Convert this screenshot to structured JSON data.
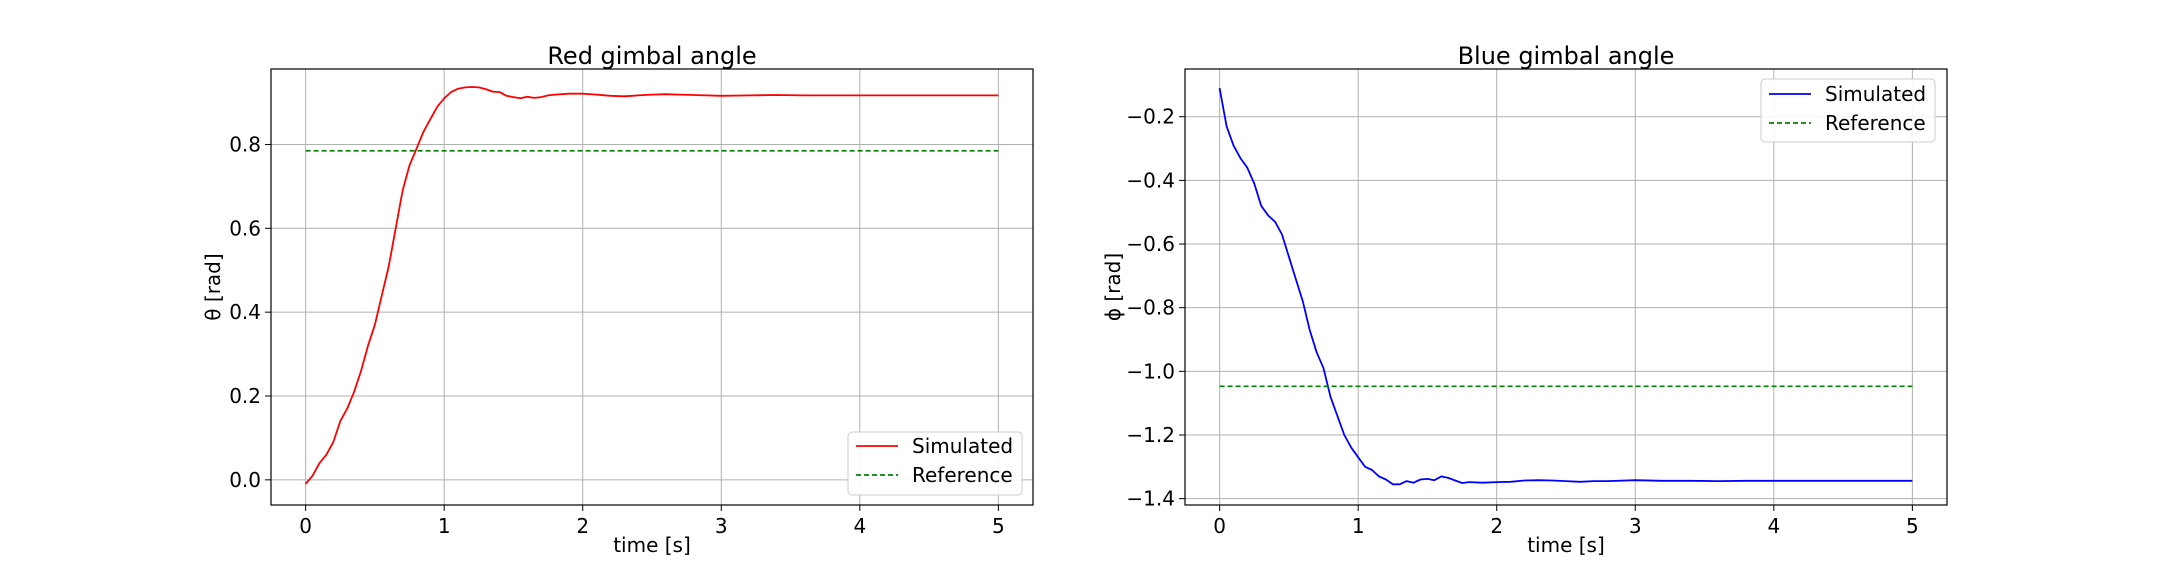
{
  "chart_data": [
    {
      "type": "line",
      "title": "Red gimbal angle",
      "xlabel": "time [s]",
      "ylabel": "θ [rad]",
      "xlim": [
        -0.25,
        5.25
      ],
      "ylim": [
        -0.06,
        0.98
      ],
      "xticks": [
        0,
        1,
        2,
        3,
        4,
        5
      ],
      "xtick_labels": [
        "0",
        "1",
        "2",
        "3",
        "4",
        "5"
      ],
      "yticks": [
        0.0,
        0.2,
        0.4,
        0.6,
        0.8
      ],
      "ytick_labels": [
        "0.0",
        "0.2",
        "0.4",
        "0.6",
        "0.8"
      ],
      "grid": true,
      "legend_position": "lower-right",
      "series": [
        {
          "name": "Simulated",
          "color": "#ff0000",
          "dash": "solid",
          "x": [
            0,
            0.05,
            0.1,
            0.15,
            0.2,
            0.25,
            0.3,
            0.35,
            0.4,
            0.45,
            0.5,
            0.55,
            0.6,
            0.65,
            0.7,
            0.75,
            0.8,
            0.85,
            0.9,
            0.95,
            1.0,
            1.05,
            1.1,
            1.15,
            1.2,
            1.25,
            1.3,
            1.35,
            1.4,
            1.45,
            1.5,
            1.55,
            1.6,
            1.65,
            1.7,
            1.75,
            1.8,
            1.9,
            2.0,
            2.1,
            2.2,
            2.3,
            2.4,
            2.5,
            2.6,
            2.7,
            2.8,
            3.0,
            3.2,
            3.4,
            3.6,
            3.8,
            4.0,
            4.5,
            5.0
          ],
          "y": [
            -0.01,
            0.01,
            0.04,
            0.06,
            0.09,
            0.14,
            0.17,
            0.21,
            0.26,
            0.32,
            0.37,
            0.44,
            0.51,
            0.6,
            0.69,
            0.75,
            0.79,
            0.83,
            0.86,
            0.89,
            0.91,
            0.925,
            0.933,
            0.936,
            0.937,
            0.936,
            0.932,
            0.926,
            0.925,
            0.916,
            0.913,
            0.91,
            0.914,
            0.911,
            0.913,
            0.917,
            0.919,
            0.921,
            0.921,
            0.919,
            0.916,
            0.915,
            0.917,
            0.919,
            0.92,
            0.919,
            0.918,
            0.916,
            0.917,
            0.918,
            0.917,
            0.917,
            0.917,
            0.917,
            0.917
          ]
        },
        {
          "name": "Reference",
          "color": "#008000",
          "dash": "dashed",
          "x": [
            0,
            5
          ],
          "y": [
            0.785,
            0.785
          ]
        }
      ]
    },
    {
      "type": "line",
      "title": "Blue gimbal angle",
      "xlabel": "time [s]",
      "ylabel": "ϕ [rad]",
      "xlim": [
        -0.25,
        5.25
      ],
      "ylim": [
        -1.42,
        -0.05
      ],
      "xticks": [
        0,
        1,
        2,
        3,
        4,
        5
      ],
      "xtick_labels": [
        "0",
        "1",
        "2",
        "3",
        "4",
        "5"
      ],
      "yticks": [
        -1.4,
        -1.2,
        -1.0,
        -0.8,
        -0.6,
        -0.4,
        -0.2
      ],
      "ytick_labels": [
        "−1.4",
        "−1.2",
        "−1.0",
        "−0.8",
        "−0.6",
        "−0.4",
        "−0.2"
      ],
      "grid": true,
      "legend_position": "upper-right",
      "series": [
        {
          "name": "Simulated",
          "color": "#0000ff",
          "dash": "solid",
          "x": [
            0,
            0.05,
            0.1,
            0.15,
            0.2,
            0.25,
            0.3,
            0.35,
            0.4,
            0.45,
            0.5,
            0.55,
            0.6,
            0.65,
            0.7,
            0.75,
            0.8,
            0.85,
            0.9,
            0.95,
            1.0,
            1.05,
            1.1,
            1.15,
            1.2,
            1.25,
            1.3,
            1.35,
            1.4,
            1.45,
            1.5,
            1.55,
            1.6,
            1.65,
            1.7,
            1.75,
            1.8,
            1.9,
            2.0,
            2.1,
            2.2,
            2.3,
            2.4,
            2.5,
            2.6,
            2.7,
            2.8,
            3.0,
            3.2,
            3.4,
            3.6,
            3.8,
            4.0,
            4.5,
            5.0
          ],
          "y": [
            -0.11,
            -0.23,
            -0.29,
            -0.33,
            -0.36,
            -0.41,
            -0.48,
            -0.51,
            -0.53,
            -0.57,
            -0.64,
            -0.71,
            -0.78,
            -0.87,
            -0.94,
            -0.99,
            -1.08,
            -1.14,
            -1.2,
            -1.24,
            -1.27,
            -1.3,
            -1.31,
            -1.33,
            -1.34,
            -1.355,
            -1.355,
            -1.345,
            -1.35,
            -1.34,
            -1.338,
            -1.342,
            -1.33,
            -1.335,
            -1.343,
            -1.351,
            -1.348,
            -1.35,
            -1.348,
            -1.347,
            -1.343,
            -1.342,
            -1.343,
            -1.345,
            -1.347,
            -1.345,
            -1.345,
            -1.342,
            -1.344,
            -1.344,
            -1.345,
            -1.344,
            -1.344,
            -1.344,
            -1.344
          ]
        },
        {
          "name": "Reference",
          "color": "#008000",
          "dash": "dashed",
          "x": [
            0,
            5
          ],
          "y": [
            -1.047,
            -1.047
          ]
        }
      ]
    }
  ]
}
